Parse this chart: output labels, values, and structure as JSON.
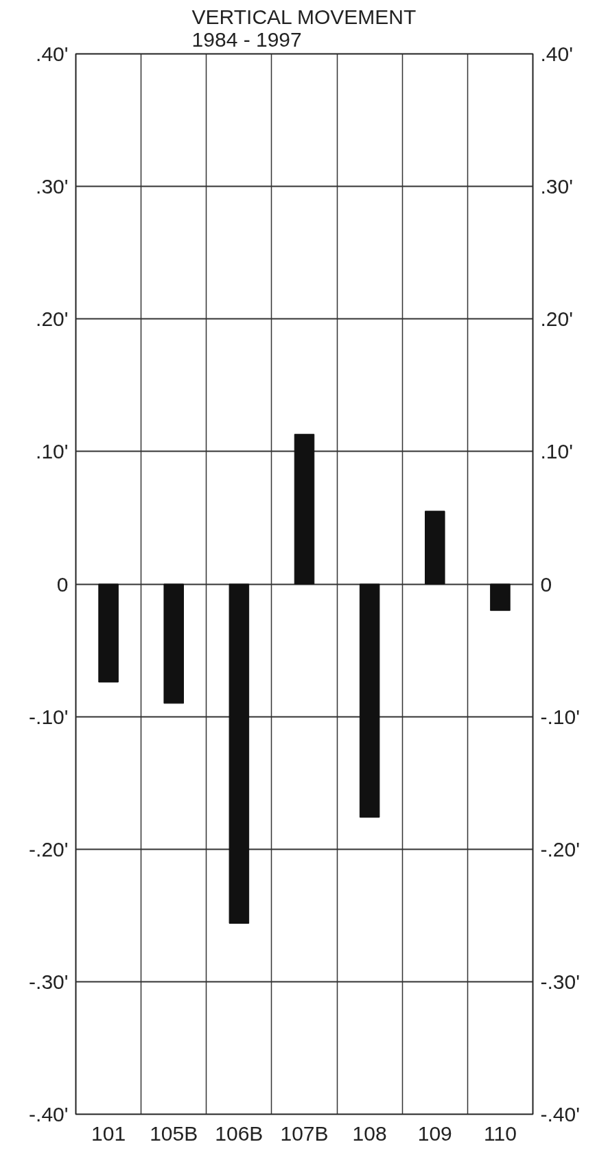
{
  "chart_data": {
    "type": "bar",
    "title": "VERTICAL MOVEMENT\n1984 - 1997",
    "categories": [
      "101",
      "105B",
      "106B",
      "107B",
      "108",
      "109",
      "110"
    ],
    "values": [
      -0.074,
      -0.09,
      -0.256,
      0.113,
      -0.176,
      0.055,
      -0.02
    ],
    "color": "#111111",
    "ylim": [
      -0.4,
      0.4
    ],
    "yticks": [
      {
        "value": 0.4,
        "label": ".40'"
      },
      {
        "value": 0.3,
        "label": ".30'"
      },
      {
        "value": 0.2,
        "label": ".20'"
      },
      {
        "value": 0.1,
        "label": ".10'"
      },
      {
        "value": 0,
        "label": "0"
      },
      {
        "value": -0.1,
        "label": "-.10'"
      },
      {
        "value": -0.2,
        "label": "-.20'"
      },
      {
        "value": -0.3,
        "label": "-.30'"
      },
      {
        "value": -0.4,
        "label": "-.40'"
      }
    ],
    "y2lim": [
      -0.4,
      0.4
    ],
    "y2ticks": [
      {
        "value": 0.4,
        "label": ".40'"
      },
      {
        "value": 0.3,
        "label": ".30'"
      },
      {
        "value": 0.2,
        "label": ".20'"
      },
      {
        "value": 0.1,
        "label": ".10'"
      },
      {
        "value": 0,
        "label": "0"
      },
      {
        "value": -0.1,
        "label": "-.10'"
      },
      {
        "value": -0.2,
        "label": "-.20'"
      },
      {
        "value": -0.3,
        "label": "-.30'"
      },
      {
        "value": -0.4,
        "label": "-.40'"
      }
    ],
    "grid": true
  }
}
